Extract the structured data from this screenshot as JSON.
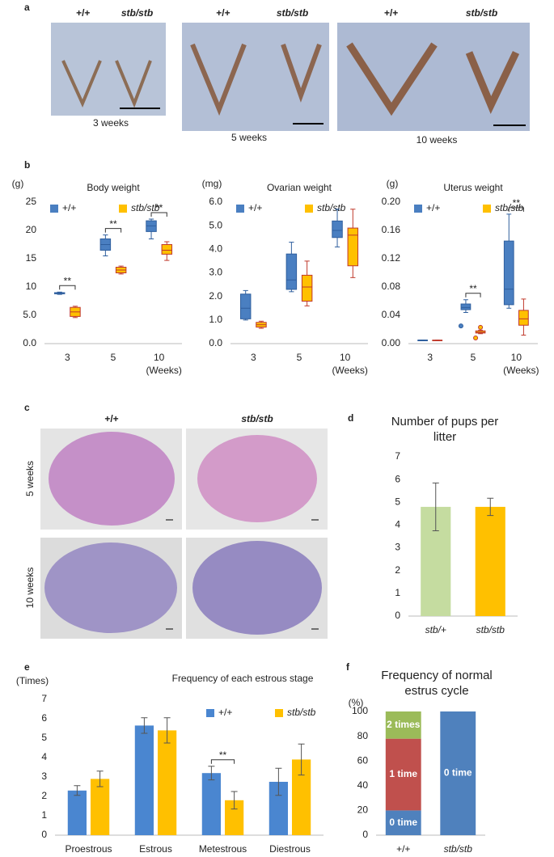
{
  "panel_labels": [
    "a",
    "b",
    "c",
    "d",
    "e",
    "f"
  ],
  "photos_a": {
    "genotypes": [
      "+/+",
      "stb/stb"
    ],
    "ages": [
      "3 weeks",
      "5 weeks",
      "10 weeks"
    ]
  },
  "photos_c": {
    "genotypes": [
      "+/+",
      "stb/stb"
    ],
    "ages": [
      "5 weeks",
      "10 weeks"
    ]
  },
  "chart_data": [
    {
      "type": "box",
      "title": "Body weight",
      "y_unit": "(g)",
      "xlabel": "(Weeks)",
      "categories": [
        "3",
        "5",
        "10"
      ],
      "ylim": [
        0,
        25
      ],
      "yticks": [
        {
          "value": 0,
          "label": "0.0"
        },
        {
          "value": 5,
          "label": "5.0"
        },
        10,
        15,
        20,
        25
      ],
      "annotations": [
        "**",
        "**",
        "**"
      ],
      "series": [
        {
          "name": "+/+",
          "color": "#4a7fc1",
          "edge_color": "#2f5f9e",
          "values": [
            [
              8.7,
              8.8,
              8.9,
              9.0,
              9.1
            ],
            [
              15.5,
              16.5,
              17.5,
              18.5,
              19.2
            ],
            [
              18.5,
              19.8,
              20.8,
              21.7,
              22.0
            ]
          ],
          "outliers": [
            [],
            [],
            []
          ]
        },
        {
          "name": "stb/stb",
          "color": "#ffc000",
          "edge_color": "#c0392b",
          "values": [
            [
              4.6,
              4.8,
              5.6,
              6.4,
              6.6
            ],
            [
              12.3,
              12.5,
              13.0,
              13.5,
              13.7
            ],
            [
              14.7,
              15.8,
              16.5,
              17.5,
              18.0
            ]
          ],
          "outliers": [
            [],
            [],
            []
          ]
        }
      ]
    },
    {
      "type": "box",
      "title": "Ovarian weight",
      "y_unit": "(mg)",
      "xlabel": "(Weeks)",
      "categories": [
        "3",
        "5",
        "10"
      ],
      "ylim": [
        0,
        6
      ],
      "yticks": [
        {
          "value": 0,
          "label": "0.0"
        },
        {
          "value": 1,
          "label": "1.0"
        },
        {
          "value": 2,
          "label": "2.0"
        },
        {
          "value": 3,
          "label": "3.0"
        },
        {
          "value": 4,
          "label": "4.0"
        },
        {
          "value": 5,
          "label": "5.0"
        },
        {
          "value": 6,
          "label": "6.0"
        }
      ],
      "annotations": [
        null,
        null,
        null
      ],
      "series": [
        {
          "name": "+/+",
          "color": "#4a7fc1",
          "edge_color": "#2f5f9e",
          "values": [
            [
              1.0,
              1.05,
              1.5,
              2.1,
              2.25
            ],
            [
              2.2,
              2.3,
              2.7,
              3.8,
              4.3
            ],
            [
              4.1,
              4.5,
              4.8,
              5.2,
              5.7
            ]
          ],
          "outliers": [
            [],
            [],
            []
          ]
        },
        {
          "name": "stb/stb",
          "color": "#ffc000",
          "edge_color": "#c0392b",
          "values": [
            [
              0.65,
              0.7,
              0.8,
              0.9,
              0.95
            ],
            [
              1.6,
              1.8,
              2.4,
              2.9,
              3.5
            ],
            [
              2.8,
              3.3,
              4.6,
              4.9,
              5.7
            ]
          ],
          "outliers": [
            [],
            [],
            []
          ]
        }
      ]
    },
    {
      "type": "box",
      "title": "Uterus weight",
      "y_unit": "(g)",
      "xlabel": "(Weeks)",
      "categories": [
        "3",
        "5",
        "10"
      ],
      "ylim": [
        0,
        0.2
      ],
      "yticks": [
        {
          "value": 0,
          "label": "0.00"
        },
        {
          "value": 0.04,
          "label": "0.04"
        },
        {
          "value": 0.08,
          "label": "0.08"
        },
        {
          "value": 0.12,
          "label": "0.12"
        },
        {
          "value": 0.16,
          "label": "0.16"
        },
        {
          "value": 0.2,
          "label": "0.20"
        }
      ],
      "annotations": [
        null,
        "**",
        "**"
      ],
      "series": [
        {
          "name": "+/+",
          "color": "#4a7fc1",
          "edge_color": "#2f5f9e",
          "values": [
            [
              0.004,
              0.004,
              0.005,
              0.005,
              0.005
            ],
            [
              0.044,
              0.048,
              0.051,
              0.056,
              0.062
            ],
            [
              0.05,
              0.055,
              0.077,
              0.145,
              0.183
            ]
          ],
          "outliers": [
            [],
            [
              0.025
            ],
            []
          ]
        },
        {
          "name": "stb/stb",
          "color": "#ffc000",
          "edge_color": "#c0392b",
          "values": [
            [
              0.004,
              0.004,
              0.004,
              0.005,
              0.005
            ],
            [
              0.014,
              0.015,
              0.016,
              0.018,
              0.019
            ],
            [
              0.012,
              0.026,
              0.035,
              0.047,
              0.063
            ]
          ],
          "outliers": [
            [],
            [
              0.008,
              0.023
            ],
            []
          ]
        }
      ]
    },
    {
      "type": "bar",
      "title": "Number of pups per litter",
      "categories": [
        "stb/+",
        "stb/stb"
      ],
      "values": [
        4.8,
        4.8
      ],
      "errors": [
        1.05,
        0.38
      ],
      "colors": [
        "#c5dca0",
        "#ffc000"
      ],
      "ylim": [
        0,
        7
      ],
      "yticks": [
        0,
        1,
        2,
        3,
        4,
        5,
        6,
        7
      ]
    },
    {
      "type": "grouped_bar",
      "title": "Frequency of each estrous stage",
      "y_unit": "(Times)",
      "categories": [
        "Proestrous",
        "Estrous",
        "Metestrous",
        "Diestrous"
      ],
      "ylim": [
        0,
        7
      ],
      "yticks": [
        0,
        1,
        2,
        3,
        4,
        5,
        6,
        7
      ],
      "annotations": [
        null,
        null,
        "**",
        null
      ],
      "series": [
        {
          "name": "+/+",
          "color": "#4a86d0",
          "values": [
            2.3,
            5.65,
            3.2,
            2.75
          ],
          "errors": [
            0.25,
            0.4,
            0.35,
            0.7
          ]
        },
        {
          "name": "stb/stb",
          "color": "#ffc000",
          "values": [
            2.9,
            5.4,
            1.8,
            3.9
          ],
          "errors": [
            0.4,
            0.65,
            0.45,
            0.8
          ]
        }
      ]
    },
    {
      "type": "stacked_bar",
      "title": "Frequency of normal estrus cycle",
      "y_unit": "(%)",
      "categories": [
        "+/+",
        "stb/stb"
      ],
      "ylim": [
        0,
        100
      ],
      "yticks": [
        0,
        20,
        40,
        60,
        80,
        100
      ],
      "series": [
        {
          "name": "0 time",
          "color": "#4f81bd",
          "values": [
            20,
            100
          ]
        },
        {
          "name": "1 time",
          "color": "#c0504d",
          "values": [
            58,
            0
          ]
        },
        {
          "name": "2 times",
          "color": "#9bbb59",
          "values": [
            22,
            0
          ]
        }
      ]
    }
  ]
}
